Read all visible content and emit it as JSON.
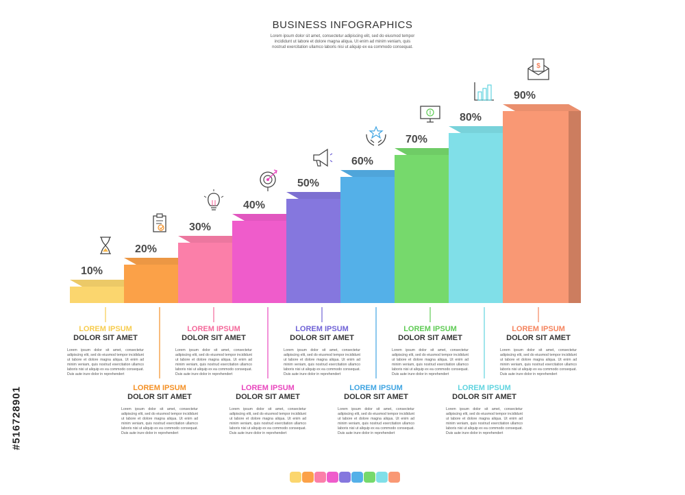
{
  "header": {
    "title": "BUSINESS INFOGRAPHICS",
    "subtitle": "Lorem ipsum dolor sit amet, consectetur adipiscing elit, sed do eiusmod tempor incididunt ut labore et dolore magna aliqua. Ut enim ad minim veniam, quis nostrud exercitation ullamco laboris nisi ut aliquip ex ea commodo consequat."
  },
  "chart_data": {
    "type": "bar",
    "categories": [
      "10%",
      "20%",
      "30%",
      "40%",
      "50%",
      "60%",
      "70%",
      "80%",
      "90%"
    ],
    "values": [
      10,
      20,
      30,
      40,
      50,
      60,
      70,
      80,
      90
    ],
    "colors": [
      "#fbd66e",
      "#fba148",
      "#fb7fa9",
      "#ef5ccb",
      "#8577de",
      "#54b0e8",
      "#76d96c",
      "#80dfe8",
      "#f99874"
    ],
    "icons": [
      "hourglass-icon",
      "clipboard-check-icon",
      "lightbulb-icon",
      "target-icon",
      "megaphone-icon",
      "hands-star-icon",
      "monitor-money-icon",
      "bar-chart-icon",
      "envelope-dollar-icon"
    ],
    "title": "",
    "xlabel": "",
    "ylabel": ""
  },
  "labels": [
    {
      "title": "LOREM IPSUM",
      "subtitle": "DOLOR SIT AMET",
      "color": "#f7cc4e",
      "body": "Lorem ipsum dolor sit amet, consectetur adipiscing elit, sed do eiusmod tempor incididunt ut labore et dolore magna aliqua. Ut enim ad minim veniam, quis nostrud exercitation ullamco laboris nisi ut aliquip ex ea commodo consequat. Duis aute irure dolor in reprehendert"
    },
    {
      "title": "LOREM IPSUM",
      "subtitle": "DOLOR SIT AMET",
      "color": "#f49025",
      "body": "Lorem ipsum dolor sit amet, consectetur adipiscing elit, sed do eiusmod tempor incididunt ut labore et dolore magna aliqua. Ut enim ad minim veniam, quis nostrud exercitation ullamco laboris nisi ut aliquip ex ea commodo consequat. Duis aute irure dolor in reprehendert"
    },
    {
      "title": "LOREM IPSUM",
      "subtitle": "DOLOR SIT AMET",
      "color": "#f4689a",
      "body": "Lorem ipsum dolor sit amet, consectetur adipiscing elit, sed do eiusmod tempor incididunt ut labore et dolore magna aliqua. Ut enim ad minim veniam, quis nostrud exercitation ullamco laboris nisi ut aliquip ex ea commodo consequat. Duis aute irure dolor in reprehendert"
    },
    {
      "title": "LOREM IPSUM",
      "subtitle": "DOLOR SIT AMET",
      "color": "#e845bd",
      "body": "Lorem ipsum dolor sit amet, consectetur adipiscing elit, sed do eiusmod tempor incididunt ut labore et dolore magna aliqua. Ut enim ad minim veniam, quis nostrud exercitation ullamco laboris nisi ut aliquip ex ea commodo consequat. Duis aute irure dolor in reprehendert"
    },
    {
      "title": "LOREM IPSUM",
      "subtitle": "DOLOR SIT AMET",
      "color": "#6f62d6",
      "body": "Lorem ipsum dolor sit amet, consectetur adipiscing elit, sed do eiusmod tempor incididunt ut labore et dolore magna aliqua. Ut enim ad minim veniam, quis nostrud exercitation ullamco laboris nisi ut aliquip ex ea commodo consequat. Duis aute irure dolor in reprehendert"
    },
    {
      "title": "LOREM IPSUM",
      "subtitle": "DOLOR SIT AMET",
      "color": "#3ea4e2",
      "body": "Lorem ipsum dolor sit amet, consectetur adipiscing elit, sed do eiusmod tempor incididunt ut labore et dolore magna aliqua. Ut enim ad minim veniam, quis nostrud exercitation ullamco laboris nisi ut aliquip ex ea commodo consequat. Duis aute irure dolor in reprehendert"
    },
    {
      "title": "LOREM IPSUM",
      "subtitle": "DOLOR SIT AMET",
      "color": "#5fcb55",
      "body": "Lorem ipsum dolor sit amet, consectetur adipiscing elit, sed do eiusmod tempor incididunt ut labore et dolore magna aliqua. Ut enim ad minim veniam, quis nostrud exercitation ullamco laboris nisi ut aliquip ex ea commodo consequat. Duis aute irure dolor in reprehendert"
    },
    {
      "title": "LOREM IPSUM",
      "subtitle": "DOLOR SIT AMET",
      "color": "#5fd3df",
      "body": "Lorem ipsum dolor sit amet, consectetur adipiscing elit, sed do eiusmod tempor incididunt ut labore et dolore magna aliqua. Ut enim ad minim veniam, quis nostrud exercitation ullamco laboris nisi ut aliquip ex ea commodo consequat. Duis aute irure dolor in reprehendert"
    },
    {
      "title": "LOREM IPSUM",
      "subtitle": "DOLOR SIT AMET",
      "color": "#f5845e",
      "body": "Lorem ipsum dolor sit amet, consectetur adipiscing elit, sed do eiusmod tempor incididunt ut labore et dolore magna aliqua. Ut enim ad minim veniam, quis nostrud exercitation ullamco laboris nisi ut aliquip ex ea commodo consequat. Duis aute irure dolor in reprehendert"
    }
  ],
  "watermark": {
    "text": "#516728901"
  }
}
